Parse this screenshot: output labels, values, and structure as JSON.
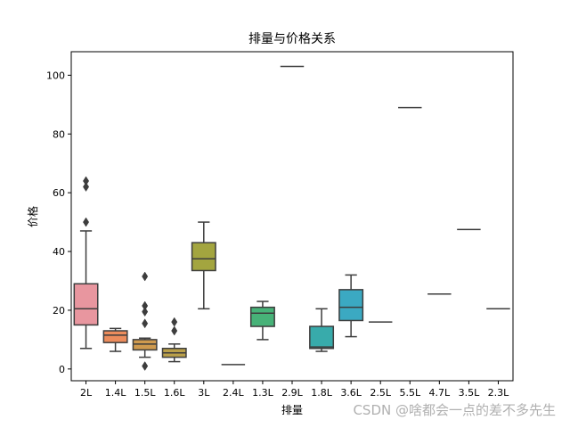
{
  "chart_data": {
    "type": "box",
    "title": "排量与价格关系",
    "xlabel": "排量",
    "ylabel": "价格",
    "ylim": [
      -4,
      108
    ],
    "yticks": [
      0,
      20,
      40,
      60,
      80,
      100
    ],
    "grid": false,
    "legend": "none",
    "categories": [
      "2L",
      "1.4L",
      "1.5L",
      "1.6L",
      "3L",
      "2.4L",
      "1.3L",
      "2.9L",
      "1.8L",
      "3.6L",
      "2.5L",
      "5.5L",
      "4.7L",
      "3.5L",
      "2.3L"
    ],
    "boxes": [
      {
        "category": "2L",
        "whisker_low": 7,
        "q1": 15,
        "median": 20.5,
        "q3": 29,
        "whisker_high": 47,
        "outliers": [
          50,
          62,
          64
        ],
        "color": "#e8969f"
      },
      {
        "category": "1.4L",
        "whisker_low": 6,
        "q1": 9,
        "median": 11.5,
        "q3": 13,
        "whisker_high": 13.8,
        "outliers": [],
        "color": "#ec8c5c"
      },
      {
        "category": "1.5L",
        "whisker_low": 4,
        "q1": 6.5,
        "median": 8.5,
        "q3": 10,
        "whisker_high": 10.5,
        "outliers": [
          1,
          15.5,
          19.5,
          21.5,
          31.5
        ],
        "color": "#cf9a4e"
      },
      {
        "category": "1.6L",
        "whisker_low": 2.5,
        "q1": 4,
        "median": 5.5,
        "q3": 7,
        "whisker_high": 8.5,
        "outliers": [
          13,
          16
        ],
        "color": "#baa04a"
      },
      {
        "category": "3L",
        "whisker_low": 20.5,
        "q1": 33.5,
        "median": 37.5,
        "q3": 43,
        "whisker_high": 50,
        "outliers": [],
        "color": "#a3a53f"
      },
      {
        "category": "2.4L",
        "whisker_low": 1.5,
        "q1": 1.5,
        "median": 1.5,
        "q3": 1.5,
        "whisker_high": 1.5,
        "outliers": [],
        "color": "#82b043"
      },
      {
        "category": "1.3L",
        "whisker_low": 10,
        "q1": 14.5,
        "median": 19,
        "q3": 21,
        "whisker_high": 23,
        "outliers": [],
        "color": "#47b278"
      },
      {
        "category": "2.9L",
        "whisker_low": 103,
        "q1": 103,
        "median": 103,
        "q3": 103,
        "whisker_high": 103,
        "outliers": [],
        "color": "#3fae91"
      },
      {
        "category": "1.8L",
        "whisker_low": 6,
        "q1": 7,
        "median": 7.5,
        "q3": 14.5,
        "whisker_high": 20.5,
        "outliers": [],
        "color": "#38abab"
      },
      {
        "category": "3.6L",
        "whisker_low": 11,
        "q1": 16.5,
        "median": 21,
        "q3": 27,
        "whisker_high": 32,
        "outliers": [],
        "color": "#3ba9c2"
      },
      {
        "category": "2.5L",
        "whisker_low": 16,
        "q1": 16,
        "median": 16,
        "q3": 16,
        "whisker_high": 16,
        "outliers": [],
        "color": "#5ea6d9"
      },
      {
        "category": "5.5L",
        "whisker_low": 89,
        "q1": 89,
        "median": 89,
        "q3": 89,
        "whisker_high": 89,
        "outliers": [],
        "color": "#9a9de6"
      },
      {
        "category": "4.7L",
        "whisker_low": 25.5,
        "q1": 25.5,
        "median": 25.5,
        "q3": 25.5,
        "whisker_high": 25.5,
        "outliers": [],
        "color": "#c48fe3"
      },
      {
        "category": "3.5L",
        "whisker_low": 47.5,
        "q1": 47.5,
        "median": 47.5,
        "q3": 47.5,
        "whisker_high": 47.5,
        "outliers": [],
        "color": "#e387d3"
      },
      {
        "category": "2.3L",
        "whisker_low": 20.5,
        "q1": 20.5,
        "median": 20.5,
        "q3": 20.5,
        "whisker_high": 20.5,
        "outliers": [],
        "color": "#ea8bb7"
      }
    ]
  },
  "watermark": "CSDN @啥都会一点的差不多先生"
}
